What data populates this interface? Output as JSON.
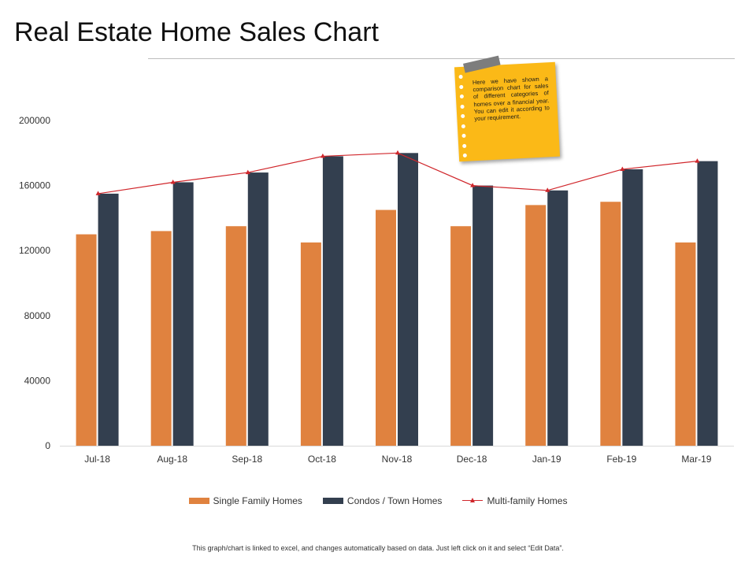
{
  "page": {
    "title": "Real Estate Home Sales Chart",
    "footer": "This graph/chart is linked to excel, and changes automatically based on data. Just left click on it and select “Edit Data”."
  },
  "note": {
    "text": "Here we have shown a comparison chart for sales of different categories of homes over a financial year. You can edit it according to your requirement."
  },
  "colors": {
    "single_family": "#e0823f",
    "condos": "#333f4f",
    "multi_family": "#d0262b"
  },
  "chart_data": {
    "type": "bar",
    "title": "Real Estate Home Sales Chart",
    "xlabel": "",
    "ylabel": "",
    "ylim": [
      0,
      200000
    ],
    "yticks": [
      0,
      40000,
      80000,
      120000,
      160000,
      200000
    ],
    "grid": false,
    "legend_position": "bottom",
    "categories": [
      "Jul-18",
      "Aug-18",
      "Sep-18",
      "Oct-18",
      "Nov-18",
      "Dec-18",
      "Jan-19",
      "Feb-19",
      "Mar-19"
    ],
    "series": [
      {
        "name": "Single Family Homes",
        "type": "bar",
        "values": [
          130000,
          132000,
          135000,
          125000,
          145000,
          135000,
          148000,
          150000,
          125000
        ]
      },
      {
        "name": "Condos / Town Homes",
        "type": "bar",
        "values": [
          155000,
          162000,
          168000,
          178000,
          180000,
          160000,
          157000,
          170000,
          175000
        ]
      },
      {
        "name": "Multi-family Homes",
        "type": "line",
        "values": [
          155000,
          162000,
          168000,
          178000,
          180000,
          160000,
          157000,
          170000,
          175000
        ]
      }
    ]
  }
}
